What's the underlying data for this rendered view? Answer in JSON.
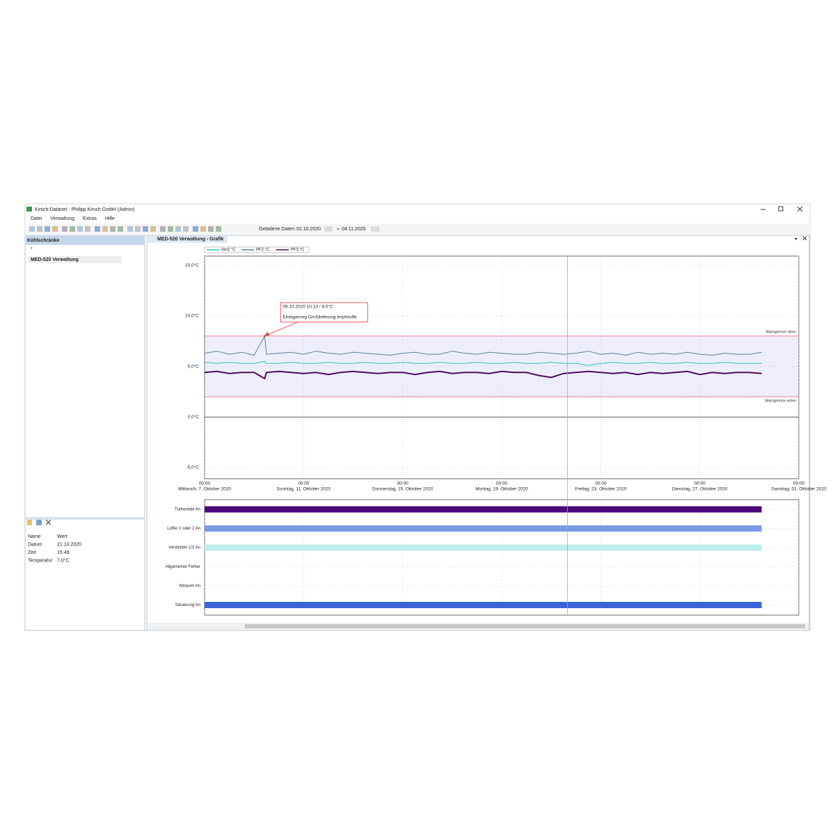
{
  "window": {
    "title": "Kirsch-Datanet - Philipp Kirsch GmbH (Admin)",
    "menu": [
      "Datei",
      "Verwaltung",
      "Extras",
      "Hilfe"
    ],
    "loaded_label": "Geladene Daten:",
    "from": "02.10.2020",
    "to": "04.11.2020"
  },
  "sidebar": {
    "header": "Kühlschränke",
    "items": [
      "*",
      "MED-520 Verwaltung"
    ],
    "properties": [
      [
        "Name",
        "Wert"
      ],
      [
        "Datum",
        "21.10.2020"
      ],
      [
        "Zeit",
        "15:49"
      ],
      [
        "Temperatur",
        "7,0°C"
      ]
    ]
  },
  "tab": "MED-520 Verwaltung - Grafik",
  "chart_data": {
    "type": "line",
    "x": [
      "2020-10-07 00:00",
      "2020-10-07 12:00",
      "2020-10-08 00:00",
      "2020-10-08 12:00",
      "2020-10-09 00:00",
      "2020-10-09 10:13",
      "2020-10-09 12:00",
      "2020-10-10 00:00",
      "2020-10-10 12:00",
      "2020-10-11 00:00",
      "2020-10-11 12:00",
      "2020-10-12 00:00",
      "2020-10-12 12:00",
      "2020-10-13 00:00",
      "2020-10-13 12:00",
      "2020-10-14 00:00",
      "2020-10-14 12:00",
      "2020-10-15 00:00",
      "2020-10-15 12:00",
      "2020-10-16 00:00",
      "2020-10-16 12:00",
      "2020-10-17 00:00",
      "2020-10-17 12:00",
      "2020-10-18 00:00",
      "2020-10-18 12:00",
      "2020-10-19 00:00",
      "2020-10-19 12:00",
      "2020-10-20 00:00",
      "2020-10-20 12:00",
      "2020-10-21 00:00",
      "2020-10-21 12:00",
      "2020-10-22 00:00",
      "2020-10-22 12:00",
      "2020-10-23 00:00",
      "2020-10-23 12:00",
      "2020-10-24 00:00",
      "2020-10-24 12:00",
      "2020-10-25 00:00",
      "2020-10-25 12:00",
      "2020-10-26 00:00",
      "2020-10-26 12:00",
      "2020-10-27 00:00",
      "2020-10-27 12:00",
      "2020-10-28 00:00",
      "2020-10-28 12:00",
      "2020-10-29 00:00",
      "2020-10-29 12:00"
    ],
    "series": [
      {
        "name": "Ain3 °C",
        "color": "#2ec4b6",
        "values": [
          5.4,
          5.3,
          5.4,
          5.3,
          5.3,
          5.5,
          5.3,
          5.3,
          5.4,
          5.3,
          5.3,
          5.4,
          5.3,
          5.3,
          5.4,
          5.3,
          5.3,
          5.4,
          5.3,
          5.3,
          5.4,
          5.3,
          5.3,
          5.4,
          5.3,
          5.3,
          5.4,
          5.3,
          5.3,
          5.4,
          5.3,
          5.3,
          5.1,
          5.3,
          5.4,
          5.3,
          5.3,
          5.4,
          5.3,
          5.3,
          5.4,
          5.3,
          5.3,
          5.4,
          5.3,
          5.3,
          5.3
        ]
      },
      {
        "name": "PF2 °C",
        "color": "#5a7d9a",
        "values": [
          6.3,
          6.5,
          6.2,
          6.4,
          6.1,
          8.0,
          6.2,
          6.3,
          6.4,
          6.2,
          6.5,
          6.3,
          6.2,
          6.4,
          6.3,
          6.2,
          6.1,
          6.3,
          6.4,
          6.2,
          6.2,
          6.5,
          6.3,
          6.2,
          6.4,
          6.3,
          6.2,
          6.2,
          6.4,
          6.3,
          6.2,
          6.3,
          6.5,
          6.2,
          6.3,
          6.1,
          6.4,
          6.2,
          6.3,
          6.2,
          6.4,
          6.2,
          6.1,
          6.3,
          6.2,
          6.2,
          6.4
        ]
      },
      {
        "name": "PF3 °C",
        "color": "#4b0a5e",
        "values": [
          4.4,
          4.5,
          4.3,
          4.4,
          4.4,
          3.8,
          4.4,
          4.5,
          4.4,
          4.3,
          4.4,
          4.2,
          4.4,
          4.5,
          4.4,
          4.3,
          4.4,
          4.4,
          4.2,
          4.4,
          4.5,
          4.3,
          4.4,
          4.4,
          4.3,
          4.5,
          4.4,
          4.4,
          4.1,
          3.9,
          4.3,
          4.4,
          4.5,
          4.4,
          4.3,
          4.4,
          4.2,
          4.4,
          4.3,
          4.4,
          4.5,
          4.2,
          4.4,
          4.3,
          4.4,
          4.4,
          4.3
        ]
      }
    ],
    "xlim": [
      "2020-10-07 00:00",
      "2020-10-31 00:00"
    ],
    "xticks": [
      {
        "value": "2020-10-07 00:00",
        "label": "00:00",
        "date_label": "Mittwoch, 7. Oktober 2020"
      },
      {
        "value": "2020-10-11 00:00",
        "label": "00:00",
        "date_label": "Sonntag, 11. Oktober 2020"
      },
      {
        "value": "2020-10-15 00:00",
        "label": "00:00",
        "date_label": "Donnerstag, 15. Oktober 2020"
      },
      {
        "value": "2020-10-19 00:00",
        "label": "00:00",
        "date_label": "Montag, 19. Oktober 2020"
      },
      {
        "value": "2020-10-23 00:00",
        "label": "00:00",
        "date_label": "Freitag, 23. Oktober 2020"
      },
      {
        "value": "2020-10-27 00:00",
        "label": "00:00",
        "date_label": "Dienstag, 27. Oktober 2020"
      },
      {
        "value": "2020-10-31 00:00",
        "label": "00:00",
        "date_label": "Samstag, 31. Oktober 2020"
      }
    ],
    "ylim": [
      -6.1,
      15.9
    ],
    "yticks": [
      {
        "value": 15,
        "label": "15,0°C"
      },
      {
        "value": 10,
        "label": "10,0°C"
      },
      {
        "value": 5,
        "label": "5,0°C"
      },
      {
        "value": 0,
        "label": "0,0°C"
      },
      {
        "value": -5,
        "label": "-5,0°C"
      }
    ],
    "grid": true,
    "limits": [
      {
        "label": "Warngrenze oben",
        "value": 8.0,
        "color": "#f08080"
      },
      {
        "label": "Warngrenze unten",
        "value": 2.0,
        "color": "#f08080"
      }
    ],
    "band_color": "#eeeefb",
    "annotation": {
      "x": "2020-10-09 10:13",
      "y": 8.0,
      "lines": [
        "09.10.2020 10:13 / 8,0°C",
        "Einlagerung Großlieferung Impfstoffe"
      ],
      "color": "#e0303a"
    },
    "cursor_x": "2020-10-21 15:49",
    "cursor_color": "#5bc0de",
    "channels": [
      {
        "name": "Türkontakt An",
        "color": "#4b0a7a",
        "start": "2020-10-07 00:00",
        "end": "2020-10-29 12:00"
      },
      {
        "name": "Lüfter 1 oder 2 An",
        "color": "#7a9be6",
        "start": "2020-10-07 00:00",
        "end": "2020-10-29 12:00"
      },
      {
        "name": "Verdichter 1/2 An",
        "color": "#bdeeee",
        "start": "2020-10-07 00:00",
        "end": "2020-10-29 12:00"
      },
      {
        "name": "Allgemeiner Fehler",
        "color": "#cccccc",
        "start": null,
        "end": null
      },
      {
        "name": "Abtauen An",
        "color": "#cccccc",
        "start": null,
        "end": null
      },
      {
        "name": "Steuerung An",
        "color": "#3c64d8",
        "start": "2020-10-07 00:00",
        "end": "2020-10-29 12:00"
      }
    ]
  }
}
